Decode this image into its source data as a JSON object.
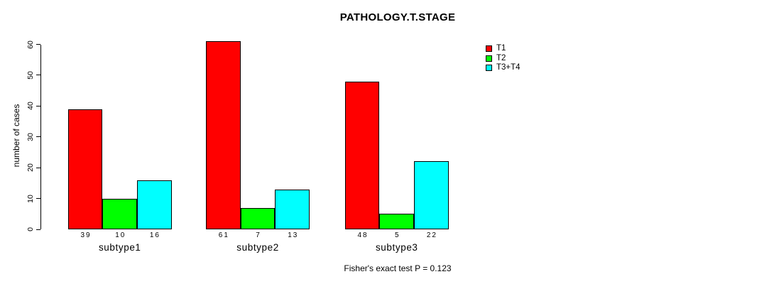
{
  "title": "PATHOLOGY.T.STAGE",
  "footer": "Fisher's exact test P = 0.123",
  "chart_data": {
    "type": "bar",
    "grouped": true,
    "title": "PATHOLOGY.T.STAGE",
    "categories": [
      "subtype1",
      "subtype2",
      "subtype3"
    ],
    "series": [
      {
        "name": "T1",
        "color": "#ff0000",
        "values": [
          39,
          61,
          48
        ]
      },
      {
        "name": "T2",
        "color": "#00ff00",
        "values": [
          10,
          7,
          5
        ]
      },
      {
        "name": "T3+T4",
        "color": "#00ffff",
        "values": [
          16,
          13,
          22
        ]
      }
    ],
    "xlabel": "",
    "ylabel": "number of cases",
    "ylim": [
      0,
      60
    ],
    "yticks": [
      0,
      10,
      20,
      30,
      40,
      50,
      60
    ],
    "bar_value_labels_shown": true,
    "legend_position": "top-right",
    "grid": false,
    "bar_border_color": "#000000",
    "annotation": "Fisher's exact test P = 0.123"
  }
}
